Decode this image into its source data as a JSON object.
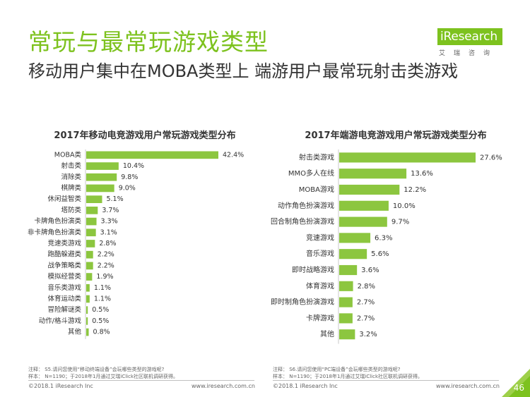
{
  "header": {
    "title": "常玩与最常玩游戏类型",
    "subtitle": "移动用户集中在MOBA类型上 端游用户最常玩射击类游戏"
  },
  "logo": {
    "word": "iResearch",
    "cn": "艾瑞咨询"
  },
  "colors": {
    "accent": "#7dc21e",
    "bar": "#8cc63f",
    "text": "#333333"
  },
  "chart_data": [
    {
      "type": "bar",
      "orientation": "horizontal",
      "title": "2017年移动电竞游戏用户常玩游戏类型分布",
      "categories": [
        "MOBA类",
        "射击类",
        "消除类",
        "棋牌类",
        "休闲益智类",
        "塔防类",
        "卡牌角色扮演类",
        "非卡牌角色扮演类",
        "竞速类游戏",
        "跑酷躲避类",
        "战争策略类",
        "模拟经营类",
        "音乐类游戏",
        "体育运动类",
        "冒险解谜类",
        "动作/格斗游戏",
        "其他"
      ],
      "values": [
        42.4,
        10.4,
        9.8,
        9.0,
        5.1,
        3.7,
        3.3,
        3.1,
        2.8,
        2.2,
        2.2,
        1.9,
        1.1,
        1.1,
        0.5,
        0.5,
        0.8
      ],
      "labels": [
        "42.4%",
        "10.4%",
        "9.8%",
        "9.0%",
        "5.1%",
        "3.7%",
        "3.3%",
        "3.1%",
        "2.8%",
        "2.2%",
        "2.2%",
        "1.9%",
        "1.1%",
        "1.1%",
        "0.5%",
        "0.5%",
        "0.8%"
      ],
      "xlim": [
        0,
        42.4
      ],
      "unit": "%"
    },
    {
      "type": "bar",
      "orientation": "horizontal",
      "title": "2017年端游电竞游戏用户常玩游戏类型分布",
      "categories": [
        "射击类游戏",
        "MMO多人在线",
        "MOBA游戏",
        "动作角色扮演游戏",
        "回合制角色扮演游戏",
        "竞速游戏",
        "音乐游戏",
        "即时战略游戏",
        "体育游戏",
        "即时制角色扮演游戏",
        "卡牌游戏",
        "其他"
      ],
      "values": [
        27.6,
        13.6,
        12.2,
        10.0,
        9.7,
        6.3,
        5.6,
        3.6,
        2.8,
        2.7,
        2.7,
        3.2
      ],
      "labels": [
        "27.6%",
        "13.6%",
        "12.2%",
        "10.0%",
        "9.7%",
        "6.3%",
        "5.6%",
        "3.6%",
        "2.8%",
        "2.7%",
        "2.7%",
        "3.2%"
      ],
      "xlim": [
        0,
        27.6
      ],
      "unit": "%"
    }
  ],
  "notes": {
    "left": {
      "question": "注释：  S5.请问您使用“移动终端设备”会玩哪些类型的游戏呢?",
      "sample": "样本：  N=1190；于2018年1月通过艾瑞iClick社区联机调研获得。"
    },
    "right": {
      "question": "注释：  S6.请问您使用“PC端设备”会玩哪些类型的游戏呢?",
      "sample": "样本：  N=1190；于2018年1月通过艾瑞iClick社区联机调研获得。"
    }
  },
  "footer": {
    "left_copyright": "©2018.1 iResearch Inc",
    "left_url": "www.iresearch.com.cn",
    "right_copyright": "©2018.1 iResearch Inc",
    "right_url": "www.iresearch.com.cn",
    "page_number": "46"
  }
}
